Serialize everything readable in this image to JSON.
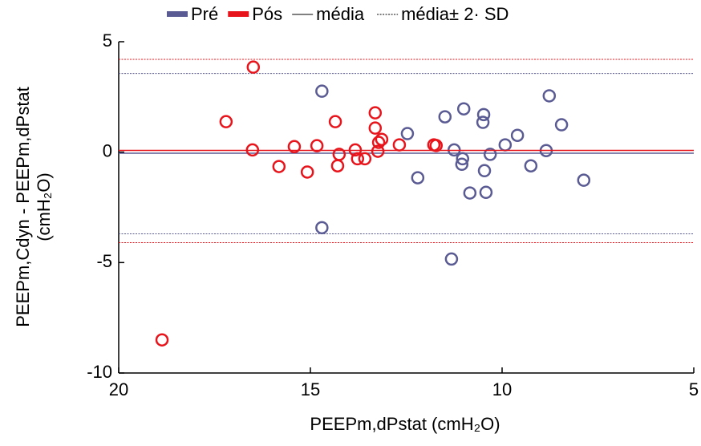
{
  "chart_data": {
    "type": "scatter",
    "xlabel": "PEEPm,dPstat (cmH₂O)",
    "ylabel": [
      "PEEPm,Cdyn - PEEPm,dPstat",
      "(cmH₂O)"
    ],
    "xlim": [
      20,
      5
    ],
    "ylim": [
      -10,
      5
    ],
    "xticks": [
      20,
      15,
      10,
      5
    ],
    "yticks": [
      5,
      0,
      -5,
      -10
    ],
    "legend_lines": [
      "média",
      "média± 2· SD"
    ],
    "series": [
      {
        "name": "Pré",
        "color": "#5b5b94",
        "x": [
          14.7,
          14.7,
          12.47,
          12.2,
          11.49,
          11.0,
          11.25,
          11.03,
          11.05,
          10.84,
          11.32,
          10.48,
          10.5,
          10.46,
          10.42,
          10.31,
          9.92,
          9.6,
          9.25,
          8.77,
          8.85,
          8.45,
          7.87
        ],
        "values": [
          2.76,
          -3.42,
          0.84,
          -1.16,
          1.6,
          1.96,
          0.1,
          -0.3,
          -0.55,
          -1.85,
          -4.84,
          1.7,
          1.35,
          -0.84,
          -1.82,
          -0.1,
          0.33,
          0.76,
          -0.62,
          2.55,
          0.07,
          1.24,
          -1.27
        ],
        "mean": -0.05,
        "limits": [
          3.56,
          -3.7
        ]
      },
      {
        "name": "Pós",
        "color": "#e8141b",
        "x": [
          18.87,
          16.49,
          17.2,
          16.51,
          15.82,
          15.42,
          15.08,
          14.83,
          14.35,
          14.29,
          14.25,
          13.83,
          13.77,
          13.58,
          13.31,
          13.31,
          13.22,
          13.14,
          13.24,
          12.68,
          11.78,
          11.72
        ],
        "values": [
          -8.5,
          3.85,
          1.38,
          0.1,
          -0.65,
          0.25,
          -0.9,
          0.29,
          1.38,
          -0.62,
          -0.1,
          0.1,
          -0.3,
          -0.3,
          1.78,
          1.09,
          0.44,
          0.58,
          0.04,
          0.33,
          0.33,
          0.3
        ],
        "mean": 0.08,
        "limits": [
          4.2,
          -4.1
        ]
      }
    ]
  }
}
